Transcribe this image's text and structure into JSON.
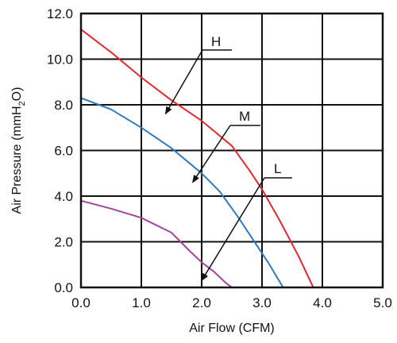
{
  "chart_data": {
    "type": "line",
    "xlabel": "Air Flow (CFM)",
    "ylabel_parts": {
      "main": "Air Pressure (mmH",
      "sub": "2",
      "tail": "O)"
    },
    "xlim": [
      0,
      5
    ],
    "ylim": [
      0,
      12
    ],
    "x_ticks": [
      "0.0",
      "1.0",
      "2.0",
      "3.0",
      "4.0",
      "5.0"
    ],
    "y_ticks": [
      "0.0",
      "2.0",
      "4.0",
      "6.0",
      "8.0",
      "10.0",
      "12.0"
    ],
    "grid": true,
    "series": [
      {
        "name": "H",
        "color": "#e8262b",
        "points": [
          [
            0,
            11.3
          ],
          [
            0.5,
            10.3
          ],
          [
            1.0,
            9.2
          ],
          [
            1.5,
            8.2
          ],
          [
            2.0,
            7.3
          ],
          [
            2.5,
            6.2
          ],
          [
            2.8,
            5.1
          ],
          [
            3.0,
            4.3
          ],
          [
            3.3,
            2.9
          ],
          [
            3.6,
            1.4
          ],
          [
            3.85,
            0
          ]
        ]
      },
      {
        "name": "M",
        "color": "#2f7bbf",
        "points": [
          [
            0,
            8.3
          ],
          [
            0.5,
            7.8
          ],
          [
            1.0,
            7.0
          ],
          [
            1.5,
            6.1
          ],
          [
            2.0,
            5.0
          ],
          [
            2.3,
            4.2
          ],
          [
            2.6,
            3.1
          ],
          [
            2.9,
            1.9
          ],
          [
            3.1,
            1.1
          ],
          [
            3.35,
            0
          ]
        ]
      },
      {
        "name": "L",
        "color": "#a3449a",
        "points": [
          [
            0,
            3.8
          ],
          [
            0.5,
            3.45
          ],
          [
            1.0,
            3.05
          ],
          [
            1.5,
            2.4
          ],
          [
            1.8,
            1.6
          ],
          [
            2.0,
            1.1
          ],
          [
            2.2,
            0.7
          ],
          [
            2.4,
            0.2
          ],
          [
            2.5,
            0
          ]
        ]
      }
    ],
    "callouts": [
      {
        "label": "H",
        "target": [
          1.4,
          7.6
        ]
      },
      {
        "label": "M",
        "target": [
          1.85,
          4.6
        ]
      },
      {
        "label": "L",
        "target": [
          2.0,
          0.3
        ]
      }
    ]
  }
}
